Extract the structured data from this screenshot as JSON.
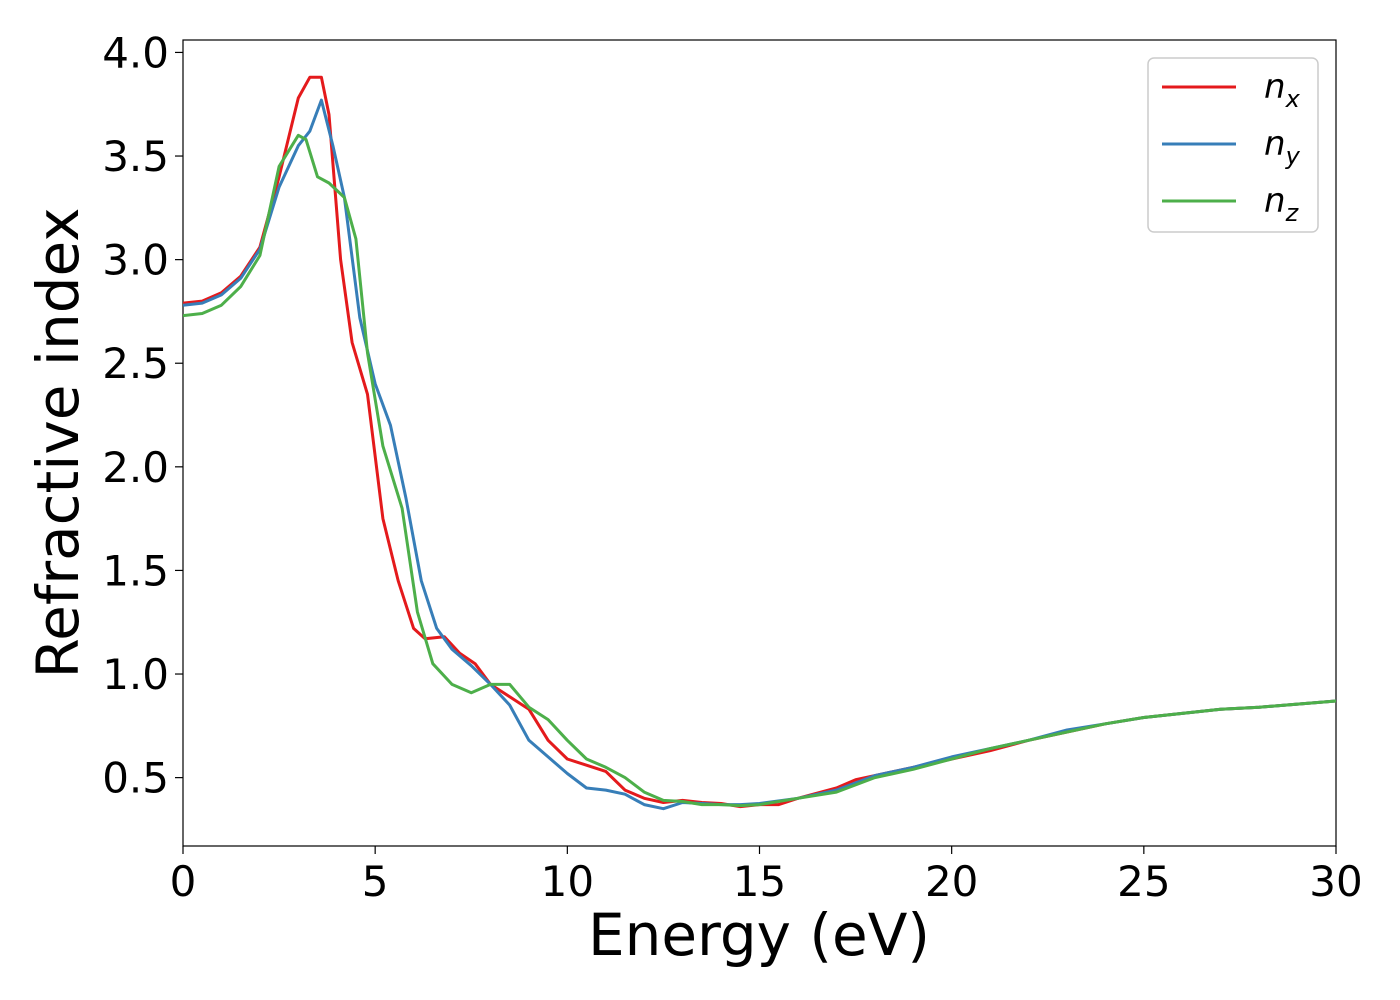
{
  "chart_data": {
    "type": "line",
    "xlabel": "Energy (eV)",
    "ylabel": "Refractive index",
    "xlim": [
      0,
      30
    ],
    "ylim": [
      0.17,
      4.06
    ],
    "xticks": [
      0,
      5,
      10,
      15,
      20,
      25,
      30
    ],
    "xtick_labels": [
      "0",
      "5",
      "10",
      "15",
      "20",
      "25",
      "30"
    ],
    "yticks": [
      0.5,
      1.0,
      1.5,
      2.0,
      2.5,
      3.0,
      3.5,
      4.0
    ],
    "ytick_labels": [
      "0.5",
      "1.0",
      "1.5",
      "2.0",
      "2.5",
      "3.0",
      "3.5",
      "4.0"
    ],
    "grid": false,
    "legend_position": "top-right",
    "series": [
      {
        "name": "n",
        "subscript": "x",
        "color": "#e41a1c",
        "points": [
          [
            0,
            2.79
          ],
          [
            0.5,
            2.8
          ],
          [
            1,
            2.84
          ],
          [
            1.5,
            2.92
          ],
          [
            2,
            3.06
          ],
          [
            2.5,
            3.4
          ],
          [
            3,
            3.78
          ],
          [
            3.3,
            3.88
          ],
          [
            3.6,
            3.88
          ],
          [
            3.8,
            3.7
          ],
          [
            4.1,
            3.0
          ],
          [
            4.4,
            2.6
          ],
          [
            4.8,
            2.35
          ],
          [
            5.2,
            1.75
          ],
          [
            5.6,
            1.45
          ],
          [
            6,
            1.22
          ],
          [
            6.3,
            1.17
          ],
          [
            6.8,
            1.18
          ],
          [
            7.2,
            1.1
          ],
          [
            7.6,
            1.05
          ],
          [
            8,
            0.95
          ],
          [
            8.5,
            0.89
          ],
          [
            9,
            0.83
          ],
          [
            9.5,
            0.68
          ],
          [
            10,
            0.59
          ],
          [
            10.5,
            0.56
          ],
          [
            11,
            0.53
          ],
          [
            11.5,
            0.44
          ],
          [
            12,
            0.4
          ],
          [
            12.5,
            0.38
          ],
          [
            13,
            0.39
          ],
          [
            13.5,
            0.38
          ],
          [
            14,
            0.375
          ],
          [
            14.5,
            0.36
          ],
          [
            15,
            0.37
          ],
          [
            15.5,
            0.37
          ],
          [
            16,
            0.4
          ],
          [
            17,
            0.45
          ],
          [
            17.5,
            0.49
          ],
          [
            18,
            0.51
          ],
          [
            19,
            0.55
          ],
          [
            20,
            0.59
          ],
          [
            21,
            0.63
          ],
          [
            22,
            0.68
          ],
          [
            23,
            0.72
          ],
          [
            24,
            0.76
          ],
          [
            25,
            0.79
          ],
          [
            26,
            0.81
          ],
          [
            27,
            0.83
          ],
          [
            28,
            0.84
          ],
          [
            29,
            0.855
          ],
          [
            30,
            0.87
          ]
        ]
      },
      {
        "name": "n",
        "subscript": "y",
        "color": "#377eb8",
        "points": [
          [
            0,
            2.78
          ],
          [
            0.5,
            2.79
          ],
          [
            1,
            2.83
          ],
          [
            1.5,
            2.91
          ],
          [
            2,
            3.05
          ],
          [
            2.5,
            3.35
          ],
          [
            3,
            3.55
          ],
          [
            3.3,
            3.62
          ],
          [
            3.6,
            3.77
          ],
          [
            3.9,
            3.55
          ],
          [
            4.2,
            3.3
          ],
          [
            4.6,
            2.72
          ],
          [
            5,
            2.4
          ],
          [
            5.4,
            2.2
          ],
          [
            5.8,
            1.85
          ],
          [
            6.2,
            1.45
          ],
          [
            6.6,
            1.22
          ],
          [
            7,
            1.12
          ],
          [
            7.5,
            1.04
          ],
          [
            8,
            0.95
          ],
          [
            8.5,
            0.85
          ],
          [
            9,
            0.68
          ],
          [
            9.5,
            0.6
          ],
          [
            10,
            0.52
          ],
          [
            10.5,
            0.45
          ],
          [
            11,
            0.44
          ],
          [
            11.5,
            0.42
          ],
          [
            12,
            0.37
          ],
          [
            12.5,
            0.35
          ],
          [
            13,
            0.38
          ],
          [
            13.5,
            0.375
          ],
          [
            14,
            0.37
          ],
          [
            14.5,
            0.37
          ],
          [
            15,
            0.375
          ],
          [
            16,
            0.4
          ],
          [
            17,
            0.44
          ],
          [
            18,
            0.51
          ],
          [
            19,
            0.55
          ],
          [
            20,
            0.6
          ],
          [
            21,
            0.64
          ],
          [
            22,
            0.68
          ],
          [
            23,
            0.73
          ],
          [
            24,
            0.76
          ],
          [
            25,
            0.79
          ],
          [
            26,
            0.81
          ],
          [
            27,
            0.83
          ],
          [
            28,
            0.84
          ],
          [
            29,
            0.855
          ],
          [
            30,
            0.87
          ]
        ]
      },
      {
        "name": "n",
        "subscript": "z",
        "color": "#4daf4a",
        "points": [
          [
            0,
            2.73
          ],
          [
            0.5,
            2.74
          ],
          [
            1,
            2.78
          ],
          [
            1.5,
            2.87
          ],
          [
            2,
            3.02
          ],
          [
            2.5,
            3.45
          ],
          [
            3,
            3.6
          ],
          [
            3.2,
            3.58
          ],
          [
            3.5,
            3.4
          ],
          [
            3.8,
            3.37
          ],
          [
            4.2,
            3.3
          ],
          [
            4.5,
            3.1
          ],
          [
            4.8,
            2.55
          ],
          [
            5.2,
            2.1
          ],
          [
            5.7,
            1.8
          ],
          [
            6.1,
            1.3
          ],
          [
            6.5,
            1.05
          ],
          [
            7,
            0.95
          ],
          [
            7.5,
            0.91
          ],
          [
            8,
            0.95
          ],
          [
            8.5,
            0.95
          ],
          [
            9,
            0.84
          ],
          [
            9.5,
            0.78
          ],
          [
            10,
            0.68
          ],
          [
            10.5,
            0.59
          ],
          [
            11,
            0.55
          ],
          [
            11.5,
            0.5
          ],
          [
            12,
            0.43
          ],
          [
            12.5,
            0.39
          ],
          [
            13,
            0.385
          ],
          [
            13.5,
            0.37
          ],
          [
            14,
            0.37
          ],
          [
            14.5,
            0.365
          ],
          [
            15,
            0.37
          ],
          [
            16,
            0.4
          ],
          [
            17,
            0.43
          ],
          [
            18,
            0.5
          ],
          [
            19,
            0.54
          ],
          [
            20,
            0.59
          ],
          [
            21,
            0.64
          ],
          [
            22,
            0.68
          ],
          [
            23,
            0.72
          ],
          [
            24,
            0.76
          ],
          [
            25,
            0.79
          ],
          [
            26,
            0.81
          ],
          [
            27,
            0.83
          ],
          [
            28,
            0.84
          ],
          [
            29,
            0.855
          ],
          [
            30,
            0.87
          ]
        ]
      }
    ]
  }
}
